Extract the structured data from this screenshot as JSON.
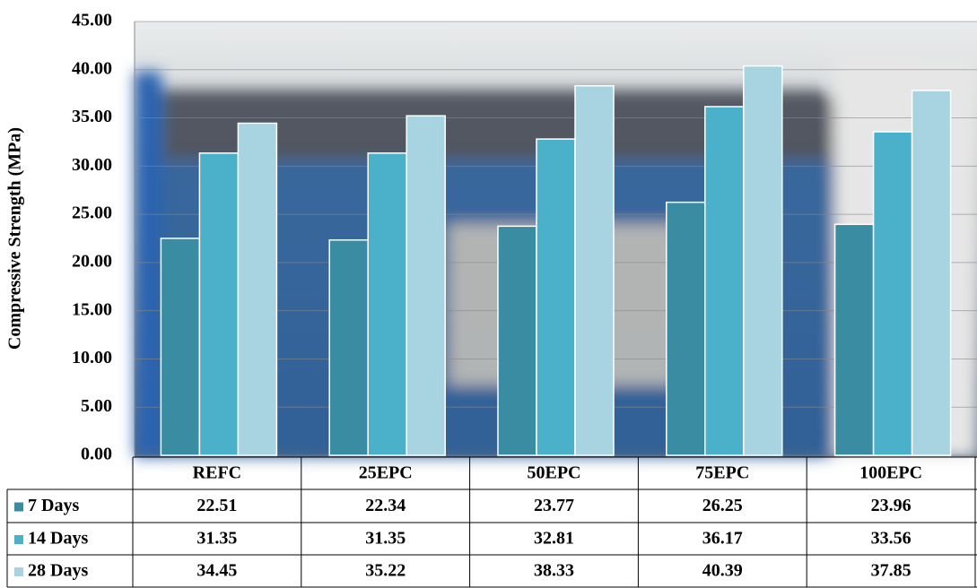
{
  "chart_data": {
    "type": "bar",
    "y_label": "Compressive Strength (MPa)",
    "categories": [
      "REFC",
      "25EPC",
      "50EPC",
      "75EPC",
      "100EPC"
    ],
    "series": [
      {
        "name": "7 Days",
        "color": "#3a8ca3",
        "values": [
          22.51,
          22.34,
          23.77,
          26.25,
          23.96
        ]
      },
      {
        "name": "14 Days",
        "color": "#4bb0c9",
        "values": [
          31.35,
          31.35,
          32.81,
          36.17,
          33.56
        ]
      },
      {
        "name": "28 Days",
        "color": "#a8d3e0",
        "values": [
          34.45,
          35.22,
          38.33,
          40.39,
          37.85
        ]
      }
    ],
    "ylim": [
      0,
      45
    ],
    "yticks": [
      {
        "value": 0,
        "label": "0.00"
      },
      {
        "value": 5,
        "label": "5.00"
      },
      {
        "value": 10,
        "label": "10.00"
      },
      {
        "value": 15,
        "label": "15.00"
      },
      {
        "value": 20,
        "label": "20.00"
      },
      {
        "value": 25,
        "label": "25.00"
      },
      {
        "value": 30,
        "label": "30.00"
      },
      {
        "value": 35,
        "label": "35.00"
      },
      {
        "value": 40,
        "label": "40.00"
      },
      {
        "value": 45,
        "label": "45.00"
      }
    ],
    "grid": true
  }
}
